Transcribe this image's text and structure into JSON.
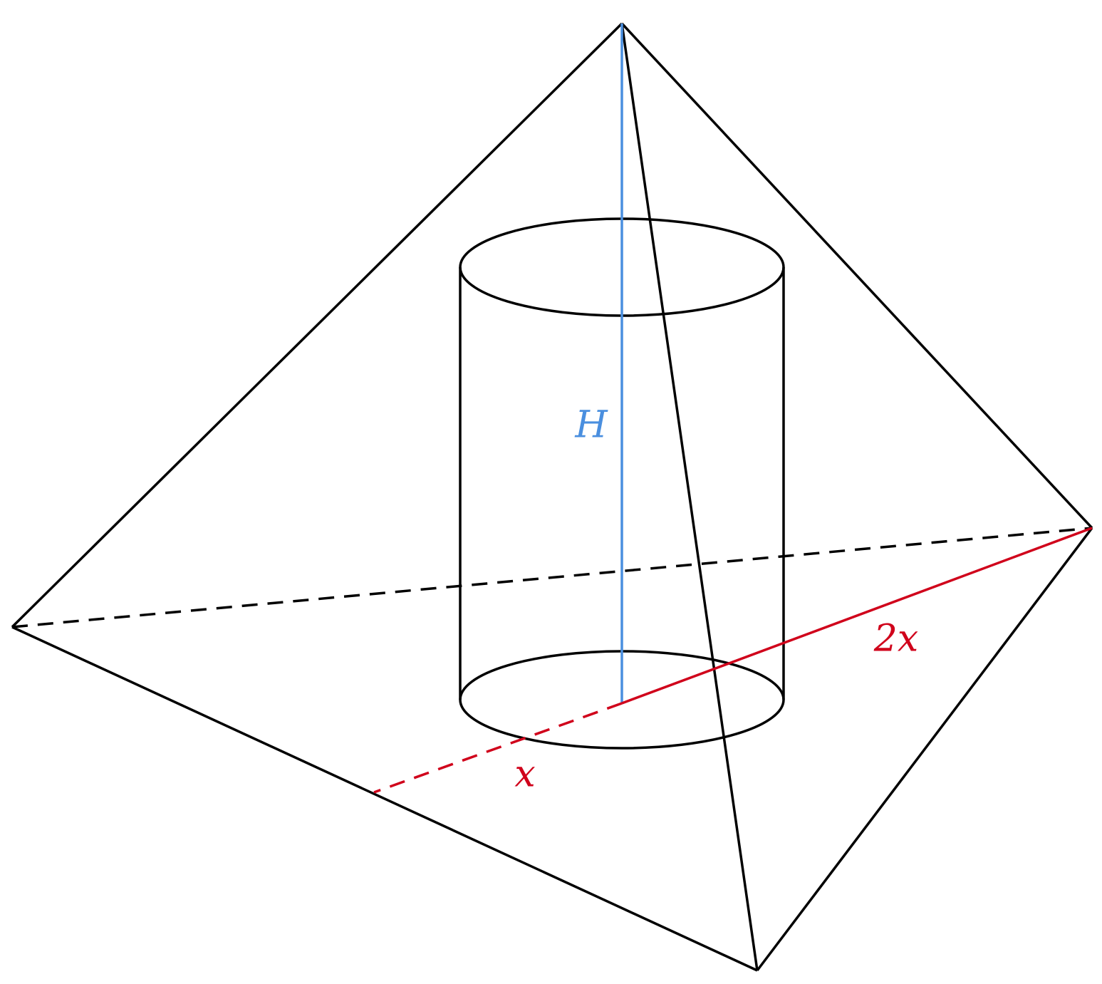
{
  "labels": {
    "height": "H",
    "long_segment": "2x",
    "short_segment": "x"
  }
}
